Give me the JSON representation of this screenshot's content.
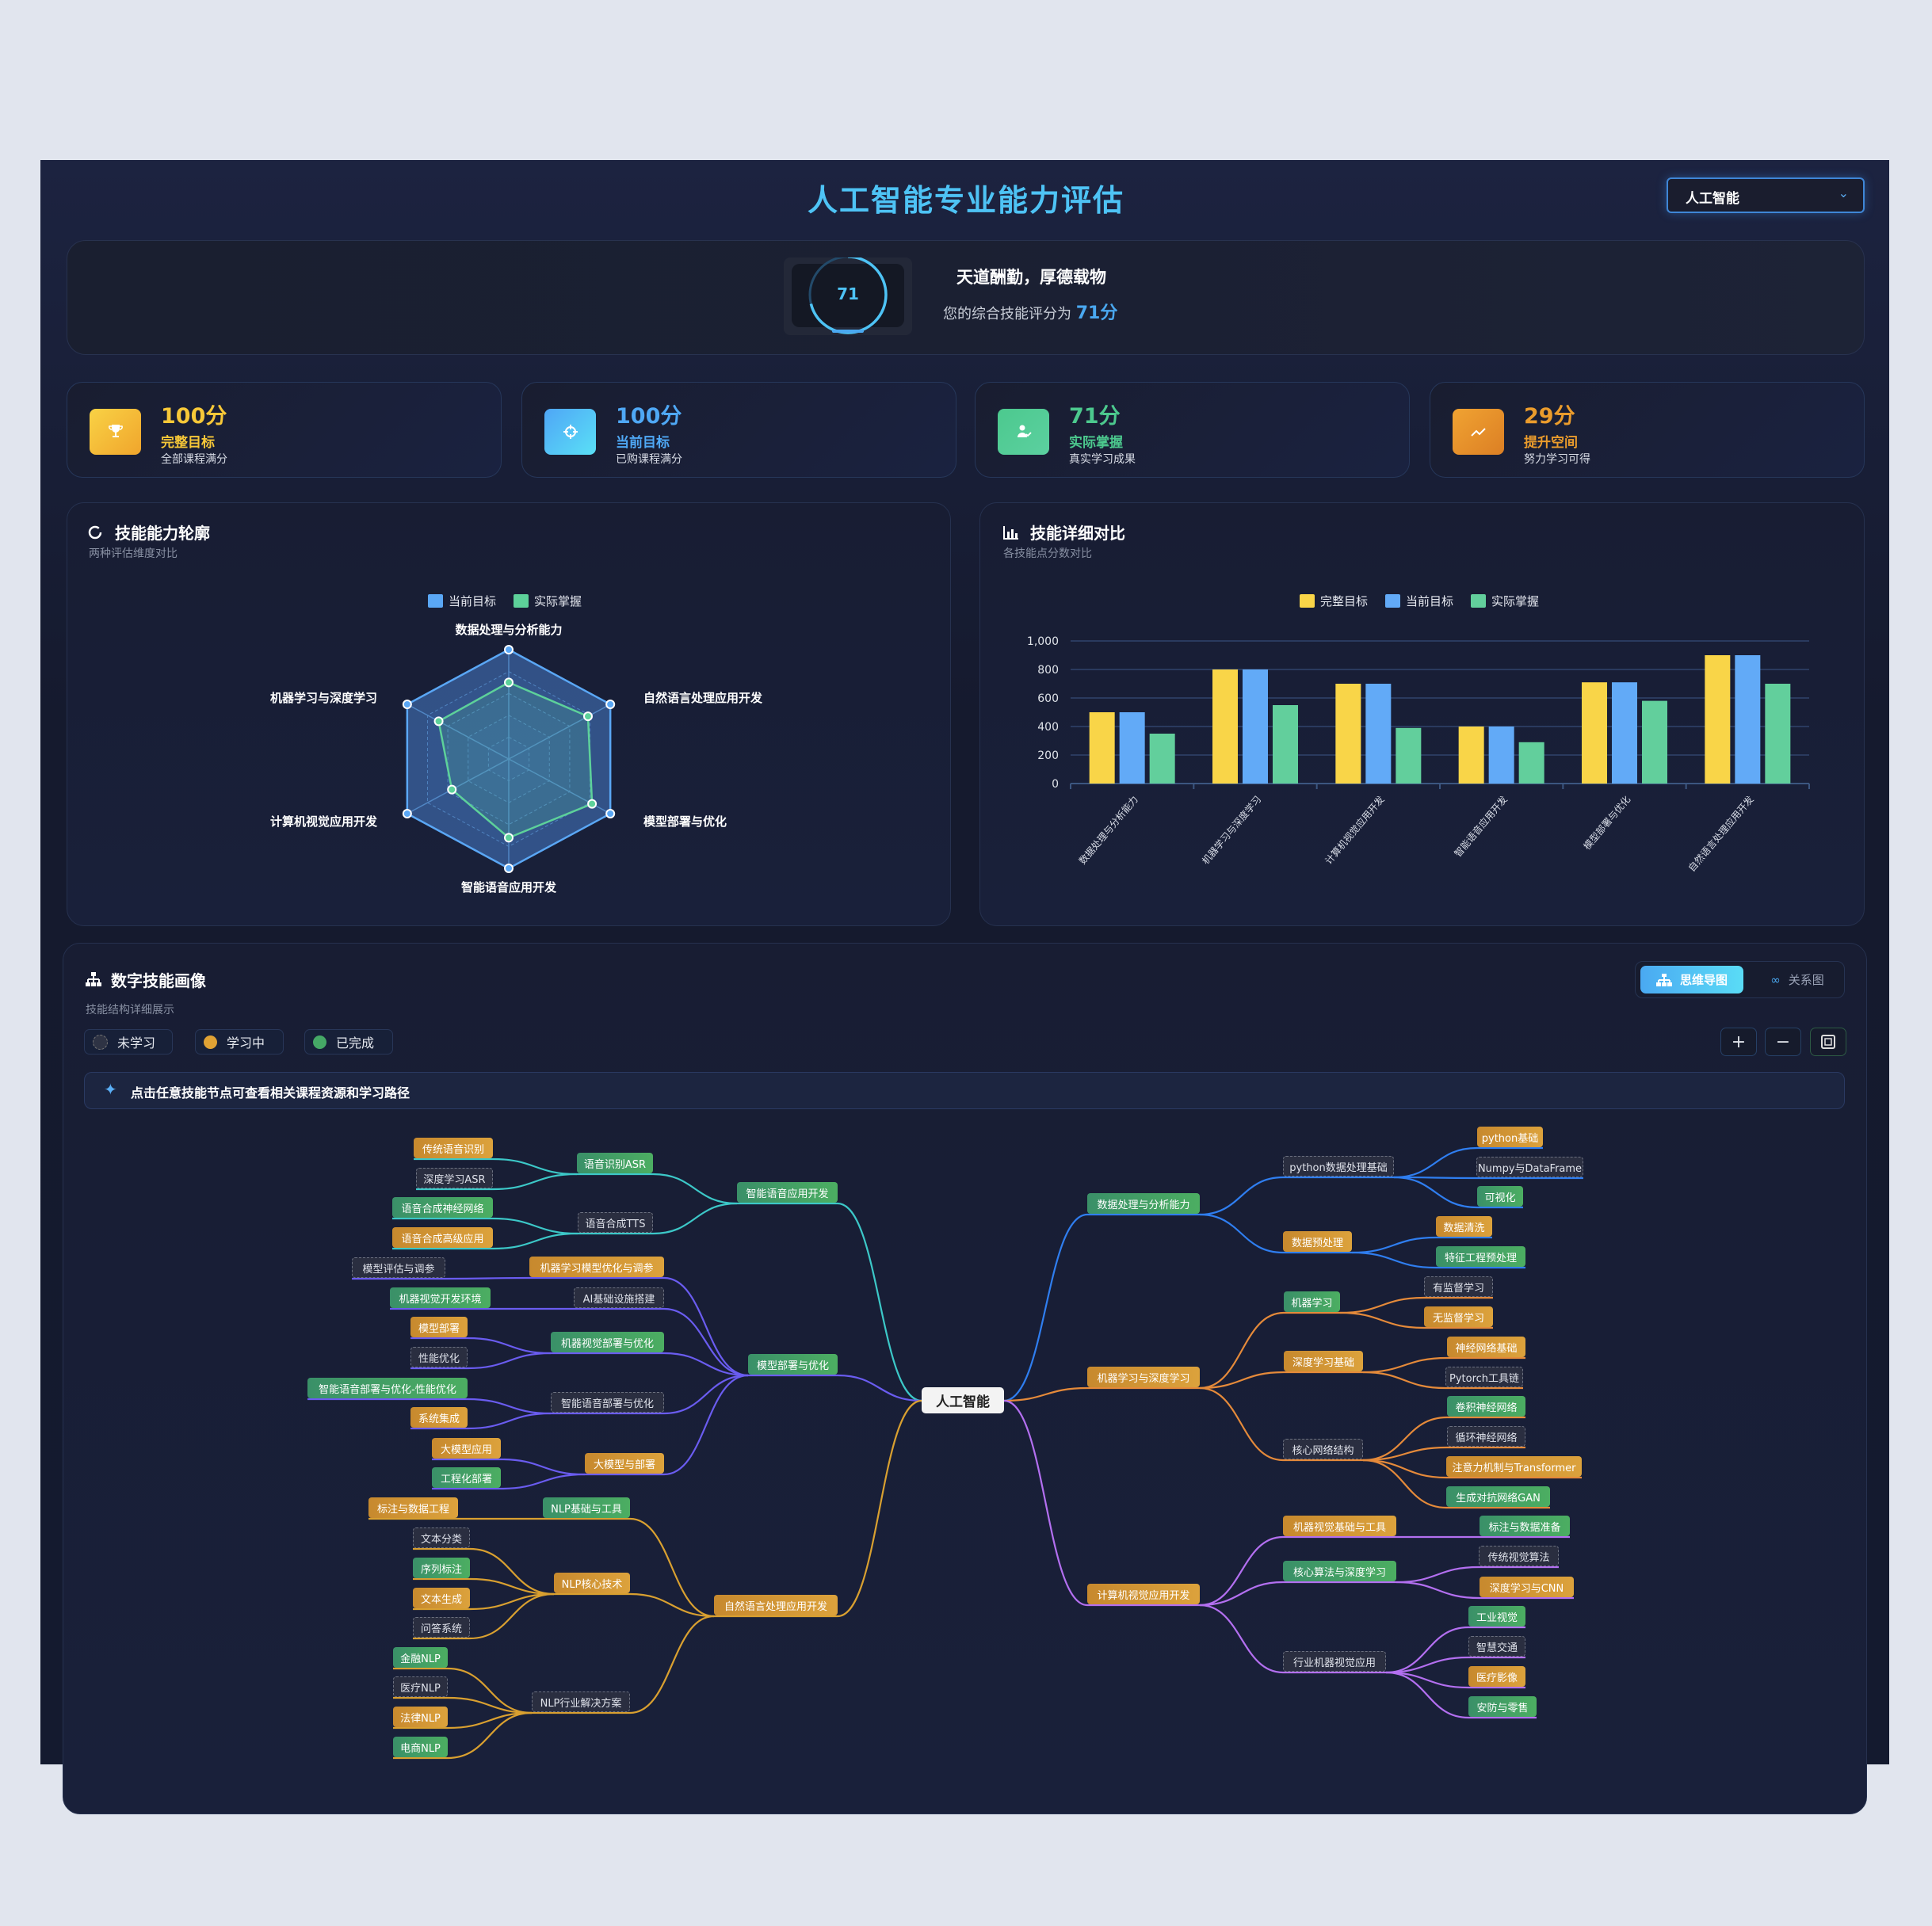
{
  "header": {
    "title": "人工智能专业能力评估",
    "dropdown_value": "人工智能",
    "dropdown_icon": "chevron-down-icon"
  },
  "banner": {
    "score": 71,
    "score_ring_percent": 71,
    "motto": "天道酬勤，厚德载物",
    "score_text": "您的综合技能评分为",
    "score_value": "71分"
  },
  "stats": [
    {
      "value": "100分",
      "label": "完整目标",
      "sub": "全部课程满分",
      "icon": "trophy-icon",
      "color": "#f7c838"
    },
    {
      "value": "100分",
      "label": "当前目标",
      "sub": "已购课程满分",
      "icon": "crosshair-icon",
      "color": "#4fa8f5"
    },
    {
      "value": "71分",
      "label": "实际掌握",
      "sub": "真实学习成果",
      "icon": "user-check-icon",
      "color": "#4cc98e"
    },
    {
      "value": "29分",
      "label": "提升空间",
      "sub": "努力学习可得",
      "icon": "trend-up-icon",
      "color": "#eb9c2c"
    }
  ],
  "radar_panel": {
    "title": "技能能力轮廓",
    "subtitle": "两种评估维度对比"
  },
  "bar_panel": {
    "title": "技能详细对比",
    "subtitle": "各技能点分数对比"
  },
  "chart_data": [
    {
      "type": "radar",
      "axes": [
        "数据处理与分析能力",
        "自然语言处理应用开发",
        "模型部署与优化",
        "智能语音应用开发",
        "计算机视觉应用开发",
        "机器学习与深度学习"
      ],
      "series": [
        {
          "name": "当前目标",
          "color": "#5aa7f5",
          "values": [
            100,
            100,
            100,
            100,
            100,
            100
          ]
        },
        {
          "name": "实际掌握",
          "color": "#5dd19a",
          "values": [
            70,
            78,
            82,
            72,
            56,
            69
          ]
        }
      ],
      "range": [
        0,
        100
      ],
      "legend": "top"
    },
    {
      "type": "bar",
      "categories": [
        "数据处理与分析能力",
        "机器学习与深度学习",
        "计算机视觉应用开发",
        "智能语音应用开发",
        "模型部署与优化",
        "自然语言处理应用开发"
      ],
      "series": [
        {
          "name": "完整目标",
          "color": "#f9d548",
          "values": [
            500,
            800,
            700,
            400,
            710,
            900
          ]
        },
        {
          "name": "当前目标",
          "color": "#62aaf7",
          "values": [
            500,
            800,
            700,
            400,
            710,
            900
          ]
        },
        {
          "name": "实际掌握",
          "color": "#62cf9c",
          "values": [
            350,
            550,
            390,
            290,
            580,
            700
          ]
        }
      ],
      "yticks": [
        "0",
        "200",
        "400",
        "600",
        "800",
        "1,000"
      ],
      "ylim": [
        0,
        1000
      ],
      "grid": true,
      "legend": "top"
    }
  ],
  "mindmap": {
    "title": "数字技能画像",
    "subtitle": "技能结构详细展示",
    "legend": [
      {
        "label": "未学习",
        "status": "d",
        "color": "#2e3344"
      },
      {
        "label": "学习中",
        "status": "o",
        "color": "#e0a234"
      },
      {
        "label": "已完成",
        "status": "g",
        "color": "#45a866"
      }
    ],
    "hint": "点击任意技能节点可查看相关课程资源和学习路径",
    "view_tabs": [
      {
        "label": "思维导图",
        "active": true
      },
      {
        "label": "关系图",
        "active": false
      }
    ],
    "controls": [
      "+",
      "−"
    ],
    "root": "人工智能",
    "branches": [
      {
        "label": "数据处理与分析能力",
        "status": "g",
        "color": "#2f7ef0",
        "children": [
          {
            "label": "python数据处理基础",
            "status": "d",
            "children": [
              {
                "label": "python基础",
                "status": "o"
              },
              {
                "label": "Numpy与DataFrame",
                "status": "d"
              },
              {
                "label": "可视化",
                "status": "g"
              }
            ]
          },
          {
            "label": "数据预处理",
            "status": "o",
            "children": [
              {
                "label": "数据清洗",
                "status": "o"
              },
              {
                "label": "特征工程预处理",
                "status": "g"
              }
            ]
          }
        ]
      },
      {
        "label": "机器学习与深度学习",
        "status": "o",
        "color": "#e58a3a",
        "children": [
          {
            "label": "机器学习",
            "status": "g",
            "children": [
              {
                "label": "有监督学习",
                "status": "d"
              },
              {
                "label": "无监督学习",
                "status": "o"
              }
            ]
          },
          {
            "label": "深度学习基础",
            "status": "o",
            "children": [
              {
                "label": "神经网络基础",
                "status": "o"
              },
              {
                "label": "Pytorch工具链",
                "status": "d"
              }
            ]
          },
          {
            "label": "核心网络结构",
            "status": "d",
            "children": [
              {
                "label": "卷积神经网络",
                "status": "g"
              },
              {
                "label": "循环神经网络",
                "status": "d"
              },
              {
                "label": "注意力机制与Transformer",
                "status": "o"
              },
              {
                "label": "生成对抗网络GAN",
                "status": "g"
              }
            ]
          }
        ]
      },
      {
        "label": "计算机视觉应用开发",
        "status": "o",
        "color": "#b36ff0",
        "children": [
          {
            "label": "机器视觉基础与工具",
            "status": "o",
            "children": [
              {
                "label": "标注与数据准备",
                "status": "g"
              }
            ]
          },
          {
            "label": "核心算法与深度学习",
            "status": "g",
            "children": [
              {
                "label": "传统视觉算法",
                "status": "d"
              },
              {
                "label": "深度学习与CNN",
                "status": "o"
              }
            ]
          },
          {
            "label": "行业机器视觉应用",
            "status": "d",
            "children": [
              {
                "label": "工业视觉",
                "status": "g"
              },
              {
                "label": "智慧交通",
                "status": "d"
              },
              {
                "label": "医疗影像",
                "status": "o"
              },
              {
                "label": "安防与零售",
                "status": "g"
              }
            ]
          }
        ]
      },
      {
        "label": "智能语音应用开发",
        "status": "g",
        "color": "#3cc8c8",
        "children": [
          {
            "label": "语音识别ASR",
            "status": "g",
            "children": [
              {
                "label": "传统语音识别",
                "status": "o"
              },
              {
                "label": "深度学习ASR",
                "status": "d"
              }
            ]
          },
          {
            "label": "语音合成TTS",
            "status": "d",
            "children": [
              {
                "label": "语音合成神经网络",
                "status": "g"
              },
              {
                "label": "语音合成高级应用",
                "status": "o"
              }
            ]
          }
        ]
      },
      {
        "label": "模型部署与优化",
        "status": "g",
        "color": "#6a5cf0",
        "children": [
          {
            "label": "机器学习模型优化与调参",
            "status": "o",
            "children": [
              {
                "label": "模型评估与调参",
                "status": "d"
              }
            ]
          },
          {
            "label": "AI基础设施搭建",
            "status": "d",
            "children": [
              {
                "label": "机器视觉开发环境",
                "status": "g"
              }
            ]
          },
          {
            "label": "机器视觉部署与优化",
            "status": "g",
            "children": [
              {
                "label": "模型部署",
                "status": "o"
              },
              {
                "label": "性能优化",
                "status": "d"
              }
            ]
          },
          {
            "label": "智能语音部署与优化",
            "status": "d",
            "children": [
              {
                "label": "智能语音部署与优化-性能优化",
                "status": "g"
              },
              {
                "label": "系统集成",
                "status": "o"
              }
            ]
          },
          {
            "label": "大模型与部署",
            "status": "o",
            "children": [
              {
                "label": "大模型应用",
                "status": "o"
              },
              {
                "label": "工程化部署",
                "status": "g"
              }
            ]
          }
        ]
      },
      {
        "label": "自然语言处理应用开发",
        "status": "o",
        "color": "#d9a030",
        "children": [
          {
            "label": "NLP基础与工具",
            "status": "g",
            "children": [
              {
                "label": "标注与数据工程",
                "status": "o"
              }
            ]
          },
          {
            "label": "NLP核心技术",
            "status": "o",
            "children": [
              {
                "label": "文本分类",
                "status": "d"
              },
              {
                "label": "序列标注",
                "status": "g"
              },
              {
                "label": "文本生成",
                "status": "o"
              },
              {
                "label": "问答系统",
                "status": "d"
              }
            ]
          },
          {
            "label": "NLP行业解决方案",
            "status": "d",
            "children": [
              {
                "label": "金融NLP",
                "status": "g"
              },
              {
                "label": "医疗NLP",
                "status": "d"
              },
              {
                "label": "法律NLP",
                "status": "o"
              },
              {
                "label": "电商NLP",
                "status": "g"
              }
            ]
          }
        ]
      }
    ]
  }
}
